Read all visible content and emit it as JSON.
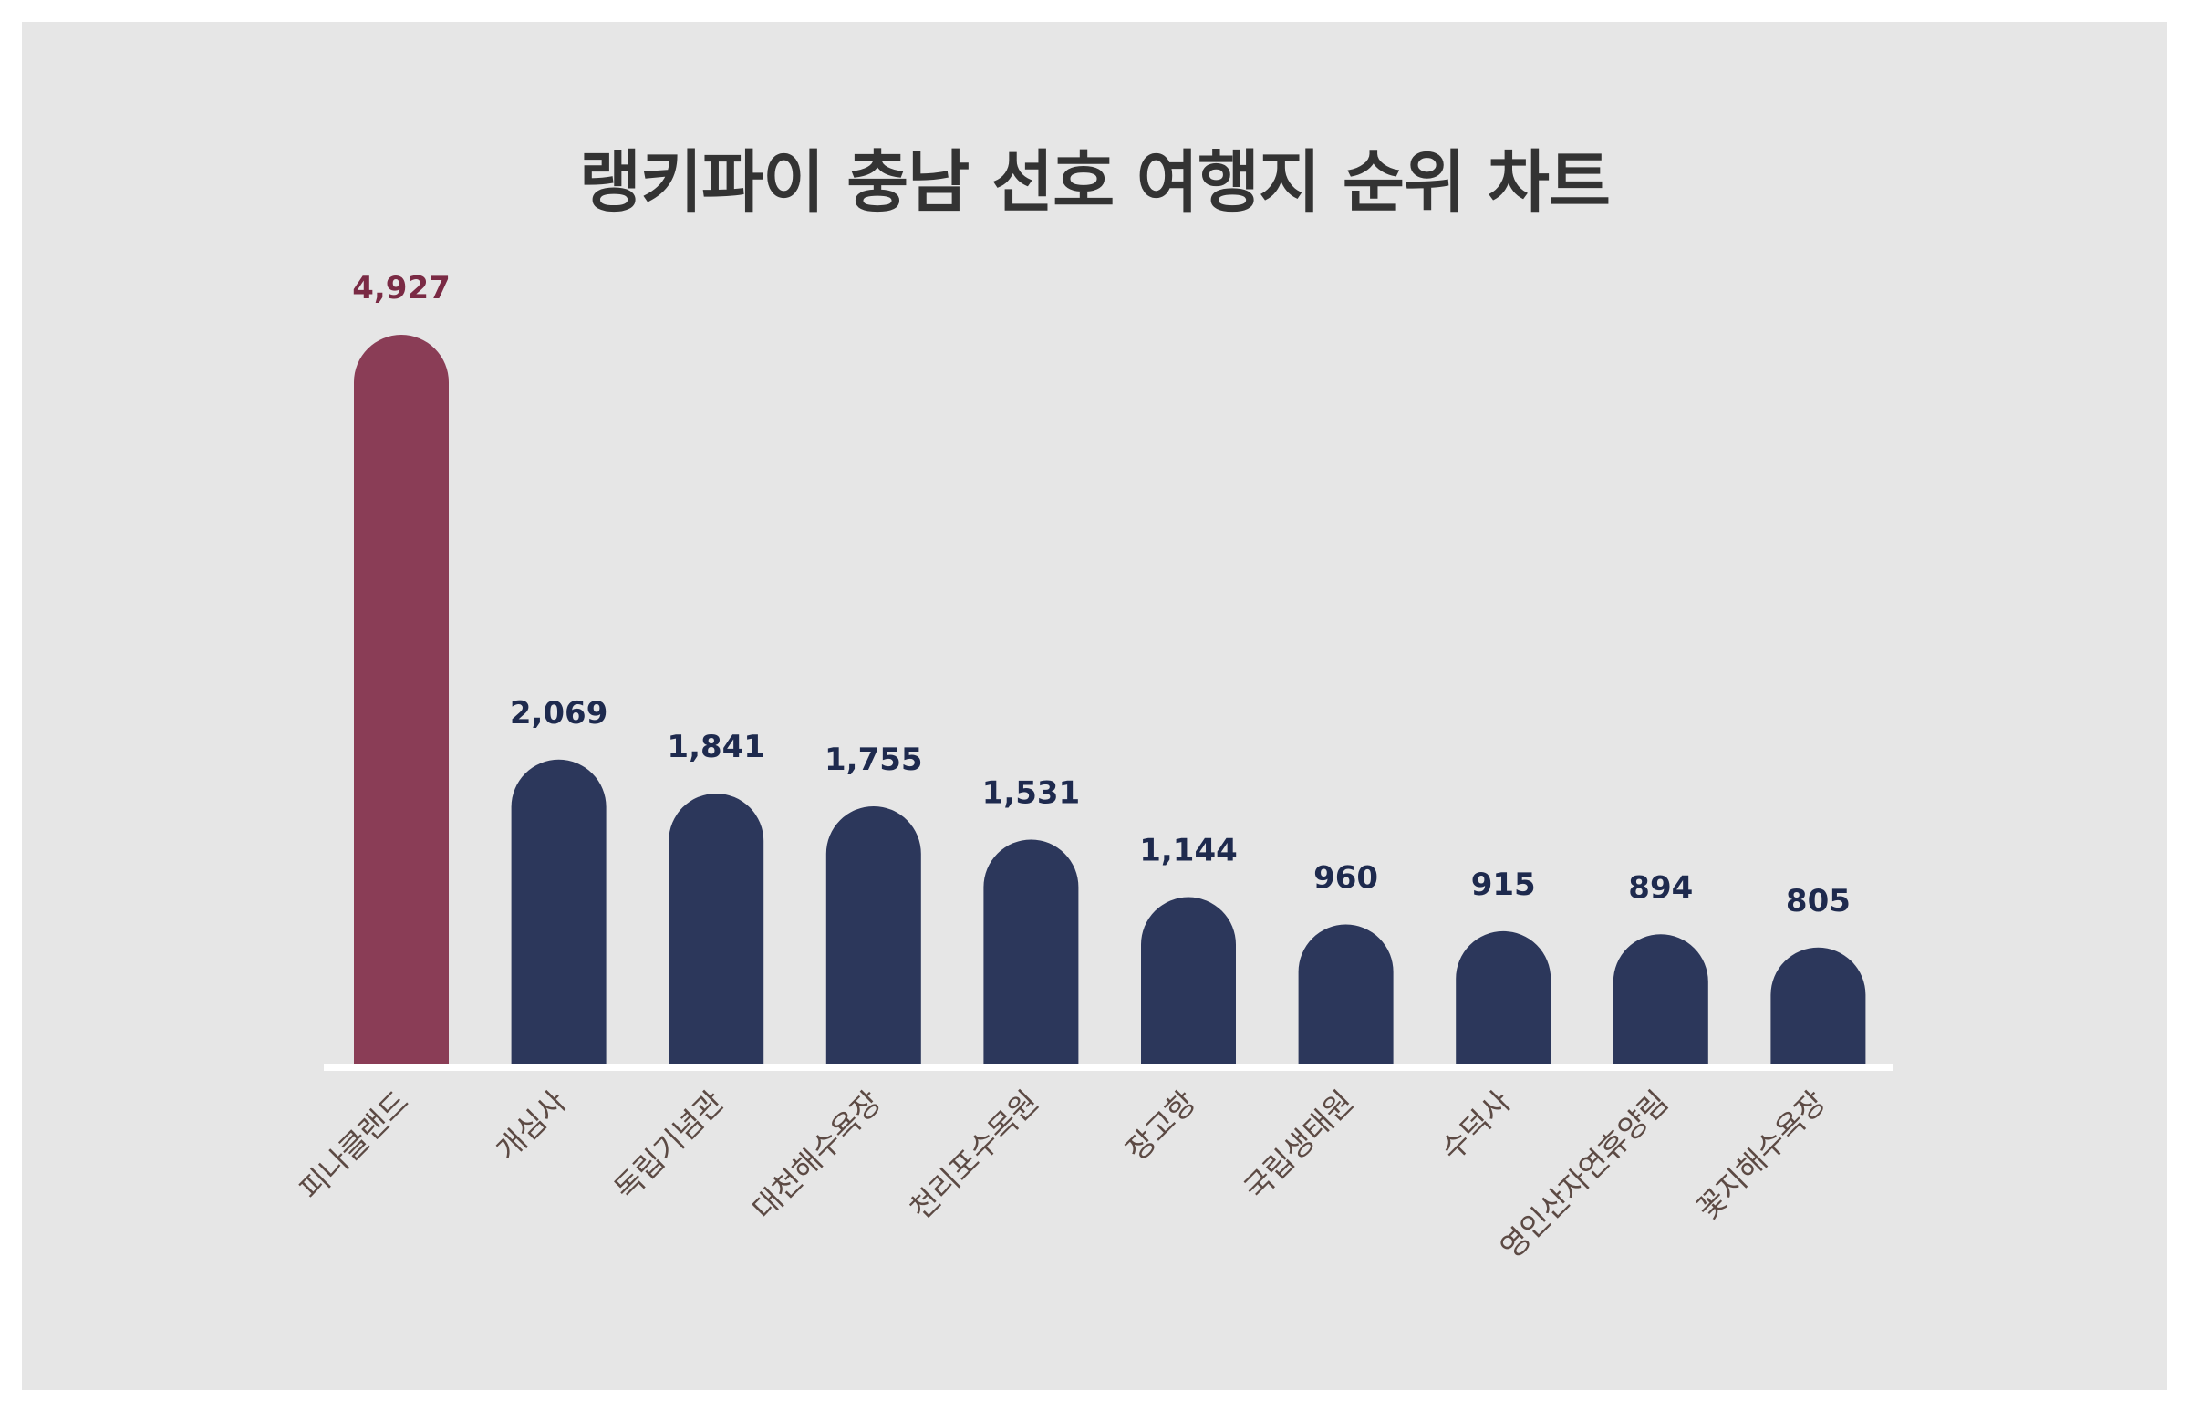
{
  "chart_data": {
    "type": "bar",
    "title": "랭키파이 충남 선호 여행지 순위 차트",
    "categories": [
      "피나클랜드",
      "개심사",
      "독립기념관",
      "대천해수욕장",
      "천리포수목원",
      "장고항",
      "국립생태원",
      "수덕사",
      "영인산자연휴양림",
      "꽃지해수욕장"
    ],
    "values": [
      4927,
      2069,
      1841,
      1755,
      1531,
      1144,
      960,
      915,
      894,
      805
    ],
    "value_labels": [
      "4,927",
      "2,069",
      "1,841",
      "1,755",
      "1,531",
      "1,144",
      "960",
      "915",
      "894",
      "805"
    ],
    "xlabel": "",
    "ylabel": "",
    "grid": false,
    "legend": "none",
    "highlight_index": 0,
    "colors": {
      "highlight": "#8a3d56",
      "bar": "#2c375b",
      "highlight_label": "#7a2a44",
      "label": "#1e2a4e",
      "baseline": "#ffffff"
    }
  }
}
